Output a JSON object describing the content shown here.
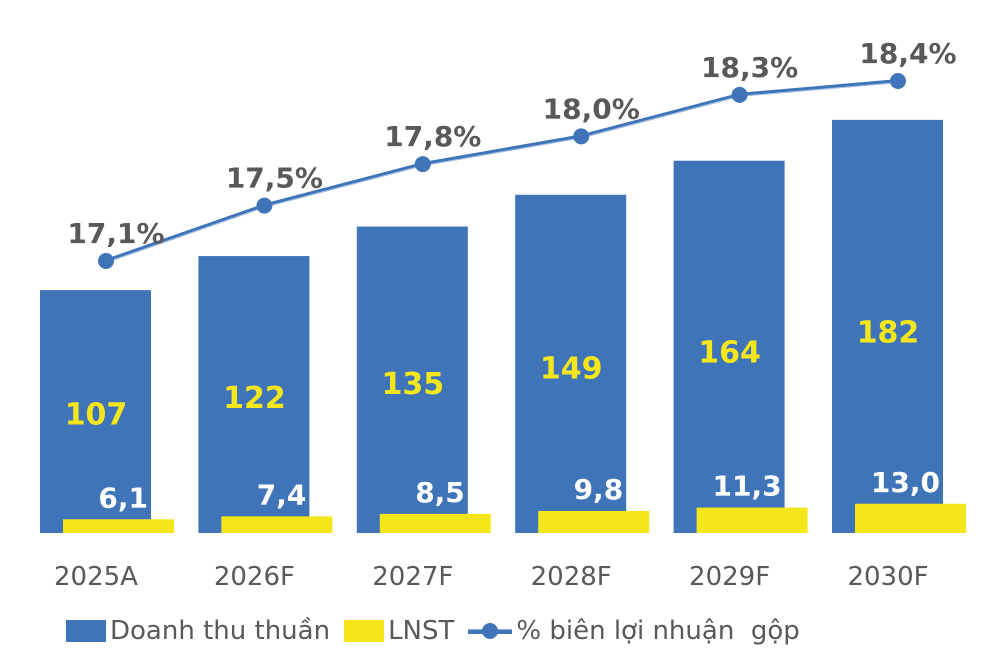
{
  "chart_data": {
    "type": "bar+line",
    "title": "",
    "categories": [
      "2025A",
      "2026F",
      "2027F",
      "2028F",
      "2029F",
      "2030F"
    ],
    "series": [
      {
        "name": "Doanh thu thuần",
        "type": "bar",
        "color": "#3f75b8",
        "values": [
          107,
          122,
          135,
          149,
          164,
          182
        ],
        "labels": [
          "107",
          "122",
          "135",
          "149",
          "164",
          "182"
        ],
        "label_color": "#f5e61c"
      },
      {
        "name": "LNST",
        "type": "bar",
        "color": "#f5e61c",
        "values": [
          6.1,
          7.4,
          8.5,
          9.8,
          11.3,
          13.0
        ],
        "labels": [
          "6,1",
          "7,4",
          "8,5",
          "9,8",
          "11,3",
          "13,0"
        ],
        "label_color": "#ffffff"
      },
      {
        "name": "% biên lợi nhuận  gộp",
        "type": "line",
        "color": "#3f75b8",
        "values": [
          17.1,
          17.5,
          17.8,
          18.0,
          18.3,
          18.4
        ],
        "labels": [
          "17,1%",
          "17,5%",
          "17,8%",
          "18,0%",
          "18,3%",
          "18,4%"
        ],
        "label_color": "#595959"
      }
    ],
    "xlabel": "",
    "ylabel": "",
    "grid": false,
    "legend_position": "bottom"
  },
  "legend": {
    "items": [
      {
        "label": "Doanh thu thuần",
        "color": "#3f75b8",
        "kind": "bar"
      },
      {
        "label": "LNST",
        "color": "#f5e61c",
        "kind": "bar"
      },
      {
        "label": "% biên lợi nhuận  gộp",
        "color": "#3f75b8",
        "kind": "line"
      }
    ]
  },
  "colors": {
    "revenue_bar": "#3f75b8",
    "profit_bar": "#f5e61c",
    "line": "#3f75b8",
    "axis_text": "#595959",
    "revenue_label": "#f5e61c",
    "profit_label": "#ffffff",
    "pct_label": "#595959"
  }
}
